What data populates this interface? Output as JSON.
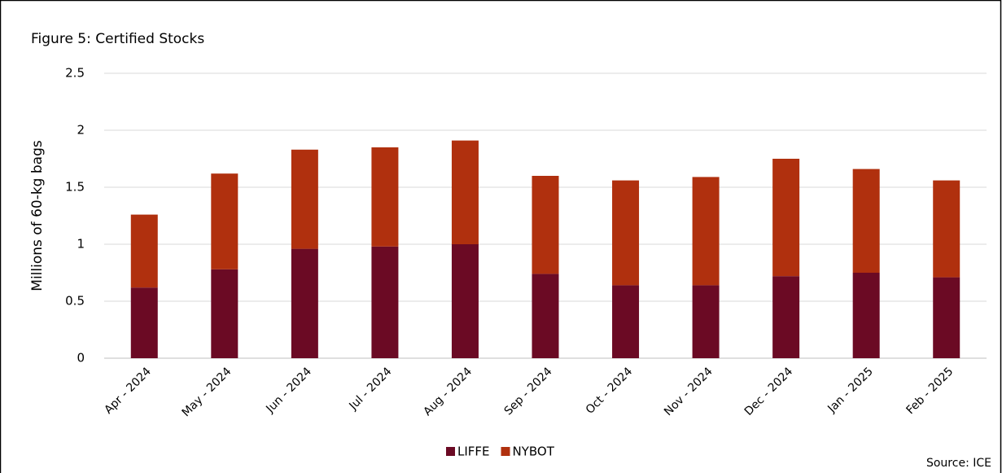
{
  "chart_data": {
    "type": "stacked_bar",
    "title": "Figure 5: Certified Stocks",
    "y_label": "Millions of 60-kg bags",
    "source": "Source: ICE",
    "categories": [
      "Apr - 2024",
      "May - 2024",
      "Jun - 2024",
      "Jul - 2024",
      "Aug - 2024",
      "Sep - 2024",
      "Oct - 2024",
      "Nov - 2024",
      "Dec - 2024",
      "Jan - 2025",
      "Feb - 2025"
    ],
    "series": [
      {
        "name": "LIFFE",
        "color": "#6b0a24",
        "values": [
          0.62,
          0.78,
          0.96,
          0.98,
          1.0,
          0.74,
          0.64,
          0.64,
          0.72,
          0.75,
          0.71
        ]
      },
      {
        "name": "NYBOT",
        "color": "#b0300e",
        "values": [
          0.64,
          0.84,
          0.87,
          0.87,
          0.91,
          0.86,
          0.92,
          0.95,
          1.03,
          0.91,
          0.85
        ]
      }
    ],
    "ylim": [
      0,
      2.5
    ],
    "yticks": [
      0,
      0.5,
      1,
      1.5,
      2,
      2.5
    ],
    "grid": true,
    "legend": "bottom"
  }
}
